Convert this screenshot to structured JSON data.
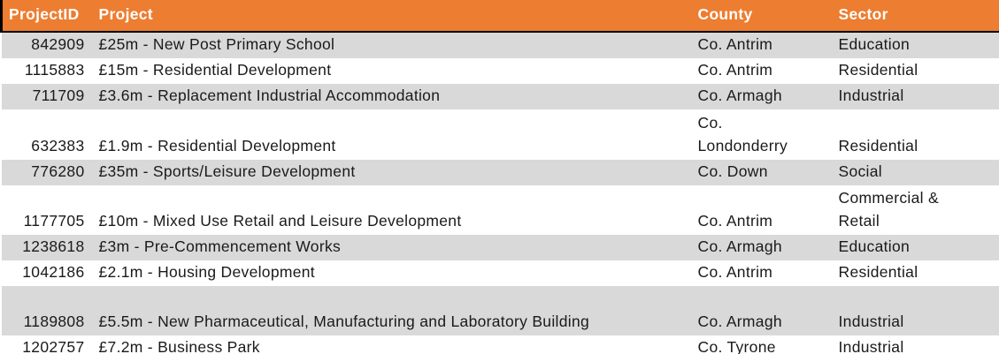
{
  "colors": {
    "header_bg": "#ED7D31",
    "header_text": "#FFFFFF",
    "header_border": "#000000",
    "stripe_bg": "#D9D9D9",
    "row_bg": "#FFFFFF",
    "body_text": "#1A1A1A"
  },
  "table": {
    "columns": [
      {
        "label": "ProjectID"
      },
      {
        "label": "Project"
      },
      {
        "label": "County"
      },
      {
        "label": "Sector"
      }
    ],
    "rows": [
      {
        "project_id": "842909",
        "project": "£25m - New Post Primary School",
        "county": "Co. Antrim",
        "sector": "Education"
      },
      {
        "project_id": "1115883",
        "project": "£15m - Residential Development",
        "county": "Co. Antrim",
        "sector": "Residential"
      },
      {
        "project_id": "711709",
        "project": "£3.6m - Replacement Industrial Accommodation",
        "county": "Co. Armagh",
        "sector": "Industrial"
      },
      {
        "project_id": "632383",
        "project": "£1.9m - Residential Development",
        "county": "Co.\nLondonderry",
        "sector": "Residential"
      },
      {
        "project_id": "776280",
        "project": "£35m - Sports/Leisure Development",
        "county": "Co. Down",
        "sector": "Social"
      },
      {
        "project_id": "1177705",
        "project": "£10m - Mixed Use Retail and Leisure Development",
        "county": "Co. Antrim",
        "sector": "Commercial &\nRetail"
      },
      {
        "project_id": "1238618",
        "project": "£3m - Pre-Commencement Works",
        "county": "Co. Armagh",
        "sector": "Education"
      },
      {
        "project_id": "1042186",
        "project": "£2.1m - Housing Development",
        "county": "Co. Antrim",
        "sector": "Residential"
      },
      {
        "project_id": "1189808",
        "project": "£5.5m - New Pharmaceutical, Manufacturing and Laboratory Building",
        "county": "Co. Armagh",
        "sector": "Industrial"
      },
      {
        "project_id": "1202757",
        "project": "£7.2m - Business Park",
        "county": "Co. Tyrone",
        "sector": "Industrial"
      }
    ]
  },
  "chart_data": {
    "type": "table",
    "columns": [
      "ProjectID",
      "Project",
      "County",
      "Sector"
    ],
    "rows": [
      [
        842909,
        "£25m - New Post Primary School",
        "Co. Antrim",
        "Education"
      ],
      [
        1115883,
        "£15m - Residential Development",
        "Co. Antrim",
        "Residential"
      ],
      [
        711709,
        "£3.6m - Replacement Industrial Accommodation",
        "Co. Armagh",
        "Industrial"
      ],
      [
        632383,
        "£1.9m - Residential Development",
        "Co. Londonderry",
        "Residential"
      ],
      [
        776280,
        "£35m - Sports/Leisure Development",
        "Co. Down",
        "Social"
      ],
      [
        1177705,
        "£10m - Mixed Use Retail and Leisure Development",
        "Co. Antrim",
        "Commercial & Retail"
      ],
      [
        1238618,
        "£3m - Pre-Commencement Works",
        "Co. Armagh",
        "Education"
      ],
      [
        1042186,
        "£2.1m - Housing Development",
        "Co. Antrim",
        "Residential"
      ],
      [
        1189808,
        "£5.5m - New Pharmaceutical, Manufacturing and Laboratory Building",
        "Co. Armagh",
        "Industrial"
      ],
      [
        1202757,
        "£7.2m - Business Park",
        "Co. Tyrone",
        "Industrial"
      ]
    ]
  }
}
